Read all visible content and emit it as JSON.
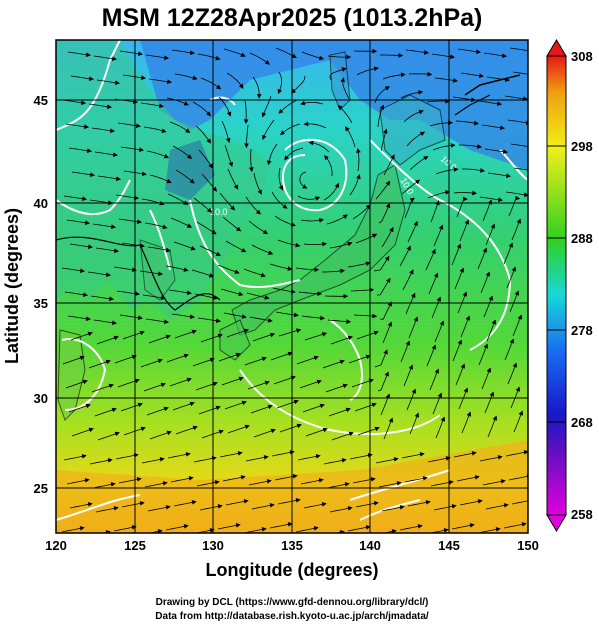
{
  "title": "MSM 12Z28Apr2025 (1013.2hPa)",
  "x_axis": {
    "label": "Longitude (degrees)",
    "ticks": [
      "120",
      "125",
      "130",
      "135",
      "140",
      "145",
      "150"
    ]
  },
  "y_axis": {
    "label": "Latitude  (degrees)",
    "ticks": [
      "25",
      "30",
      "35",
      "40",
      "45"
    ]
  },
  "colorbar": {
    "ticks": [
      "258",
      "268",
      "278",
      "288",
      "298",
      "308"
    ]
  },
  "contour_labels": [
    "10.0",
    "10.0",
    "10.0"
  ],
  "footer": {
    "line1": "Drawing by DCL (https://www.gfd-dennou.org/library/dcl/)",
    "line2": "Data from http://database.rish.kyoto-u.ac.jp/arch/jmadata/"
  },
  "colors": {
    "background": "#ffffff",
    "contour": "#ffffff",
    "streamline": "#000000",
    "colorbar_stops": [
      "#e000e0",
      "#1818c8",
      "#1868f0",
      "#18d8d8",
      "#30d020",
      "#f0f018",
      "#f0a010",
      "#e81818"
    ]
  }
}
